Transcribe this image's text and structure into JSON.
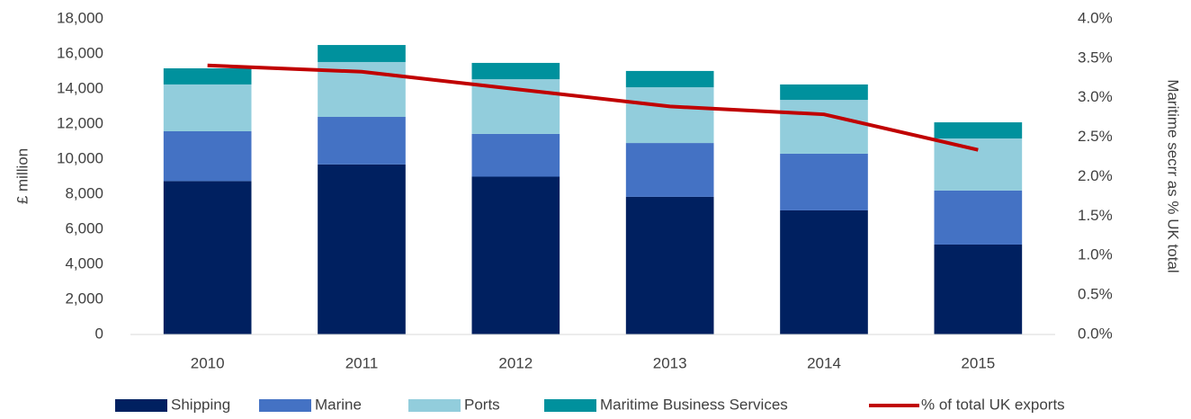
{
  "chart_data": {
    "type": "bar",
    "stacked": true,
    "categories": [
      "2010",
      "2011",
      "2012",
      "2013",
      "2014",
      "2015"
    ],
    "y_label": "£ million",
    "y2_label": "Maritime secrr as % UK total",
    "ylim": [
      0,
      18000
    ],
    "yticks": [
      0,
      {
        "value": 2000,
        "label": "2,000"
      },
      {
        "value": 4000,
        "label": "4,000"
      },
      {
        "value": 6000,
        "label": "6,000"
      },
      {
        "value": 8000,
        "label": "8,000"
      },
      {
        "value": 10000,
        "label": "10,000"
      },
      {
        "value": 12000,
        "label": "12,000"
      },
      {
        "value": 14000,
        "label": "14,000"
      },
      {
        "value": 16000,
        "label": "16,000"
      },
      {
        "value": 18000,
        "label": "18,000"
      }
    ],
    "y2lim": [
      0,
      4
    ],
    "y2ticks": [
      {
        "value": 0,
        "label": "0.0%"
      },
      {
        "value": 0.5,
        "label": "0.5%"
      },
      {
        "value": 1,
        "label": "1.0%"
      },
      {
        "value": 1.5,
        "label": "1.5%"
      },
      {
        "value": 2,
        "label": "2.0%"
      },
      {
        "value": 2.5,
        "label": "2.5%"
      },
      {
        "value": 3,
        "label": "3.0%"
      },
      {
        "value": 3.5,
        "label": "3.5%"
      },
      {
        "value": 4,
        "label": "4.0%"
      }
    ],
    "grid": false,
    "legend": "bottom",
    "series": [
      {
        "name": "Shipping",
        "color": "#002060",
        "values": [
          8750,
          9700,
          9000,
          7850,
          7080,
          5130
        ]
      },
      {
        "name": "Marine",
        "color": "#4472c4",
        "values": [
          2840,
          2710,
          2440,
          3070,
          3230,
          3080
        ]
      },
      {
        "name": "Ports",
        "color": "#92cddc",
        "values": [
          2670,
          3130,
          3120,
          3180,
          3070,
          2970
        ]
      },
      {
        "name": "Maritime Business Services",
        "color": "#00919d",
        "values": [
          920,
          970,
          930,
          930,
          880,
          920
        ]
      },
      {
        "name": "% of total UK exports",
        "color": "#c00000",
        "type": "line",
        "axis": "y2",
        "values": [
          3.41,
          3.33,
          3.11,
          2.89,
          2.79,
          2.34
        ]
      }
    ]
  }
}
